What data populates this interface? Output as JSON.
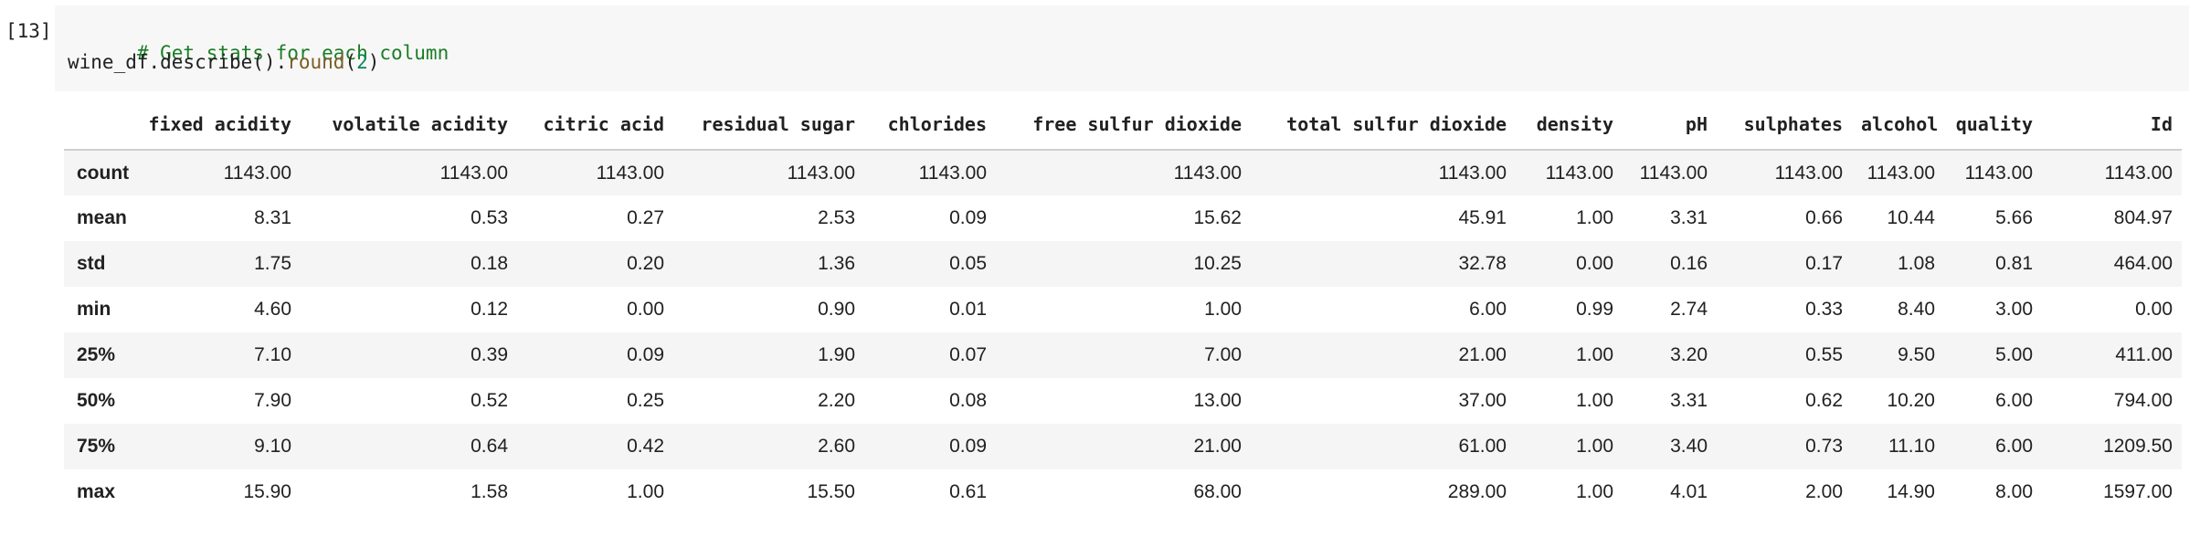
{
  "cell": {
    "prompt": "[13]",
    "code": {
      "comment": "# Get stats for each column",
      "line2_object": "wine_df.describe().",
      "line2_method": "round",
      "line2_open": "(",
      "line2_number": "2",
      "line2_close": ")"
    }
  },
  "table": {
    "columns": [
      "fixed acidity",
      "volatile acidity",
      "citric acid",
      "residual sugar",
      "chlorides",
      "free sulfur dioxide",
      "total sulfur dioxide",
      "density",
      "pH",
      "sulphates",
      "alcohol",
      "quality",
      "Id"
    ],
    "rows": [
      {
        "label": "count",
        "values": [
          "1143.00",
          "1143.00",
          "1143.00",
          "1143.00",
          "1143.00",
          "1143.00",
          "1143.00",
          "1143.00",
          "1143.00",
          "1143.00",
          "1143.00",
          "1143.00",
          "1143.00"
        ]
      },
      {
        "label": "mean",
        "values": [
          "8.31",
          "0.53",
          "0.27",
          "2.53",
          "0.09",
          "15.62",
          "45.91",
          "1.00",
          "3.31",
          "0.66",
          "10.44",
          "5.66",
          "804.97"
        ]
      },
      {
        "label": "std",
        "values": [
          "1.75",
          "0.18",
          "0.20",
          "1.36",
          "0.05",
          "10.25",
          "32.78",
          "0.00",
          "0.16",
          "0.17",
          "1.08",
          "0.81",
          "464.00"
        ]
      },
      {
        "label": "min",
        "values": [
          "4.60",
          "0.12",
          "0.00",
          "0.90",
          "0.01",
          "1.00",
          "6.00",
          "0.99",
          "2.74",
          "0.33",
          "8.40",
          "3.00",
          "0.00"
        ]
      },
      {
        "label": "25%",
        "values": [
          "7.10",
          "0.39",
          "0.09",
          "1.90",
          "0.07",
          "7.00",
          "21.00",
          "1.00",
          "3.20",
          "0.55",
          "9.50",
          "5.00",
          "411.00"
        ]
      },
      {
        "label": "50%",
        "values": [
          "7.90",
          "0.52",
          "0.25",
          "2.20",
          "0.08",
          "13.00",
          "37.00",
          "1.00",
          "3.31",
          "0.62",
          "10.20",
          "6.00",
          "794.00"
        ]
      },
      {
        "label": "75%",
        "values": [
          "9.10",
          "0.64",
          "0.42",
          "2.60",
          "0.09",
          "21.00",
          "61.00",
          "1.00",
          "3.40",
          "0.73",
          "11.10",
          "6.00",
          "1209.50"
        ]
      },
      {
        "label": "max",
        "values": [
          "15.90",
          "1.58",
          "1.00",
          "15.50",
          "0.61",
          "68.00",
          "289.00",
          "1.00",
          "4.01",
          "2.00",
          "14.90",
          "8.00",
          "1597.00"
        ]
      }
    ]
  }
}
